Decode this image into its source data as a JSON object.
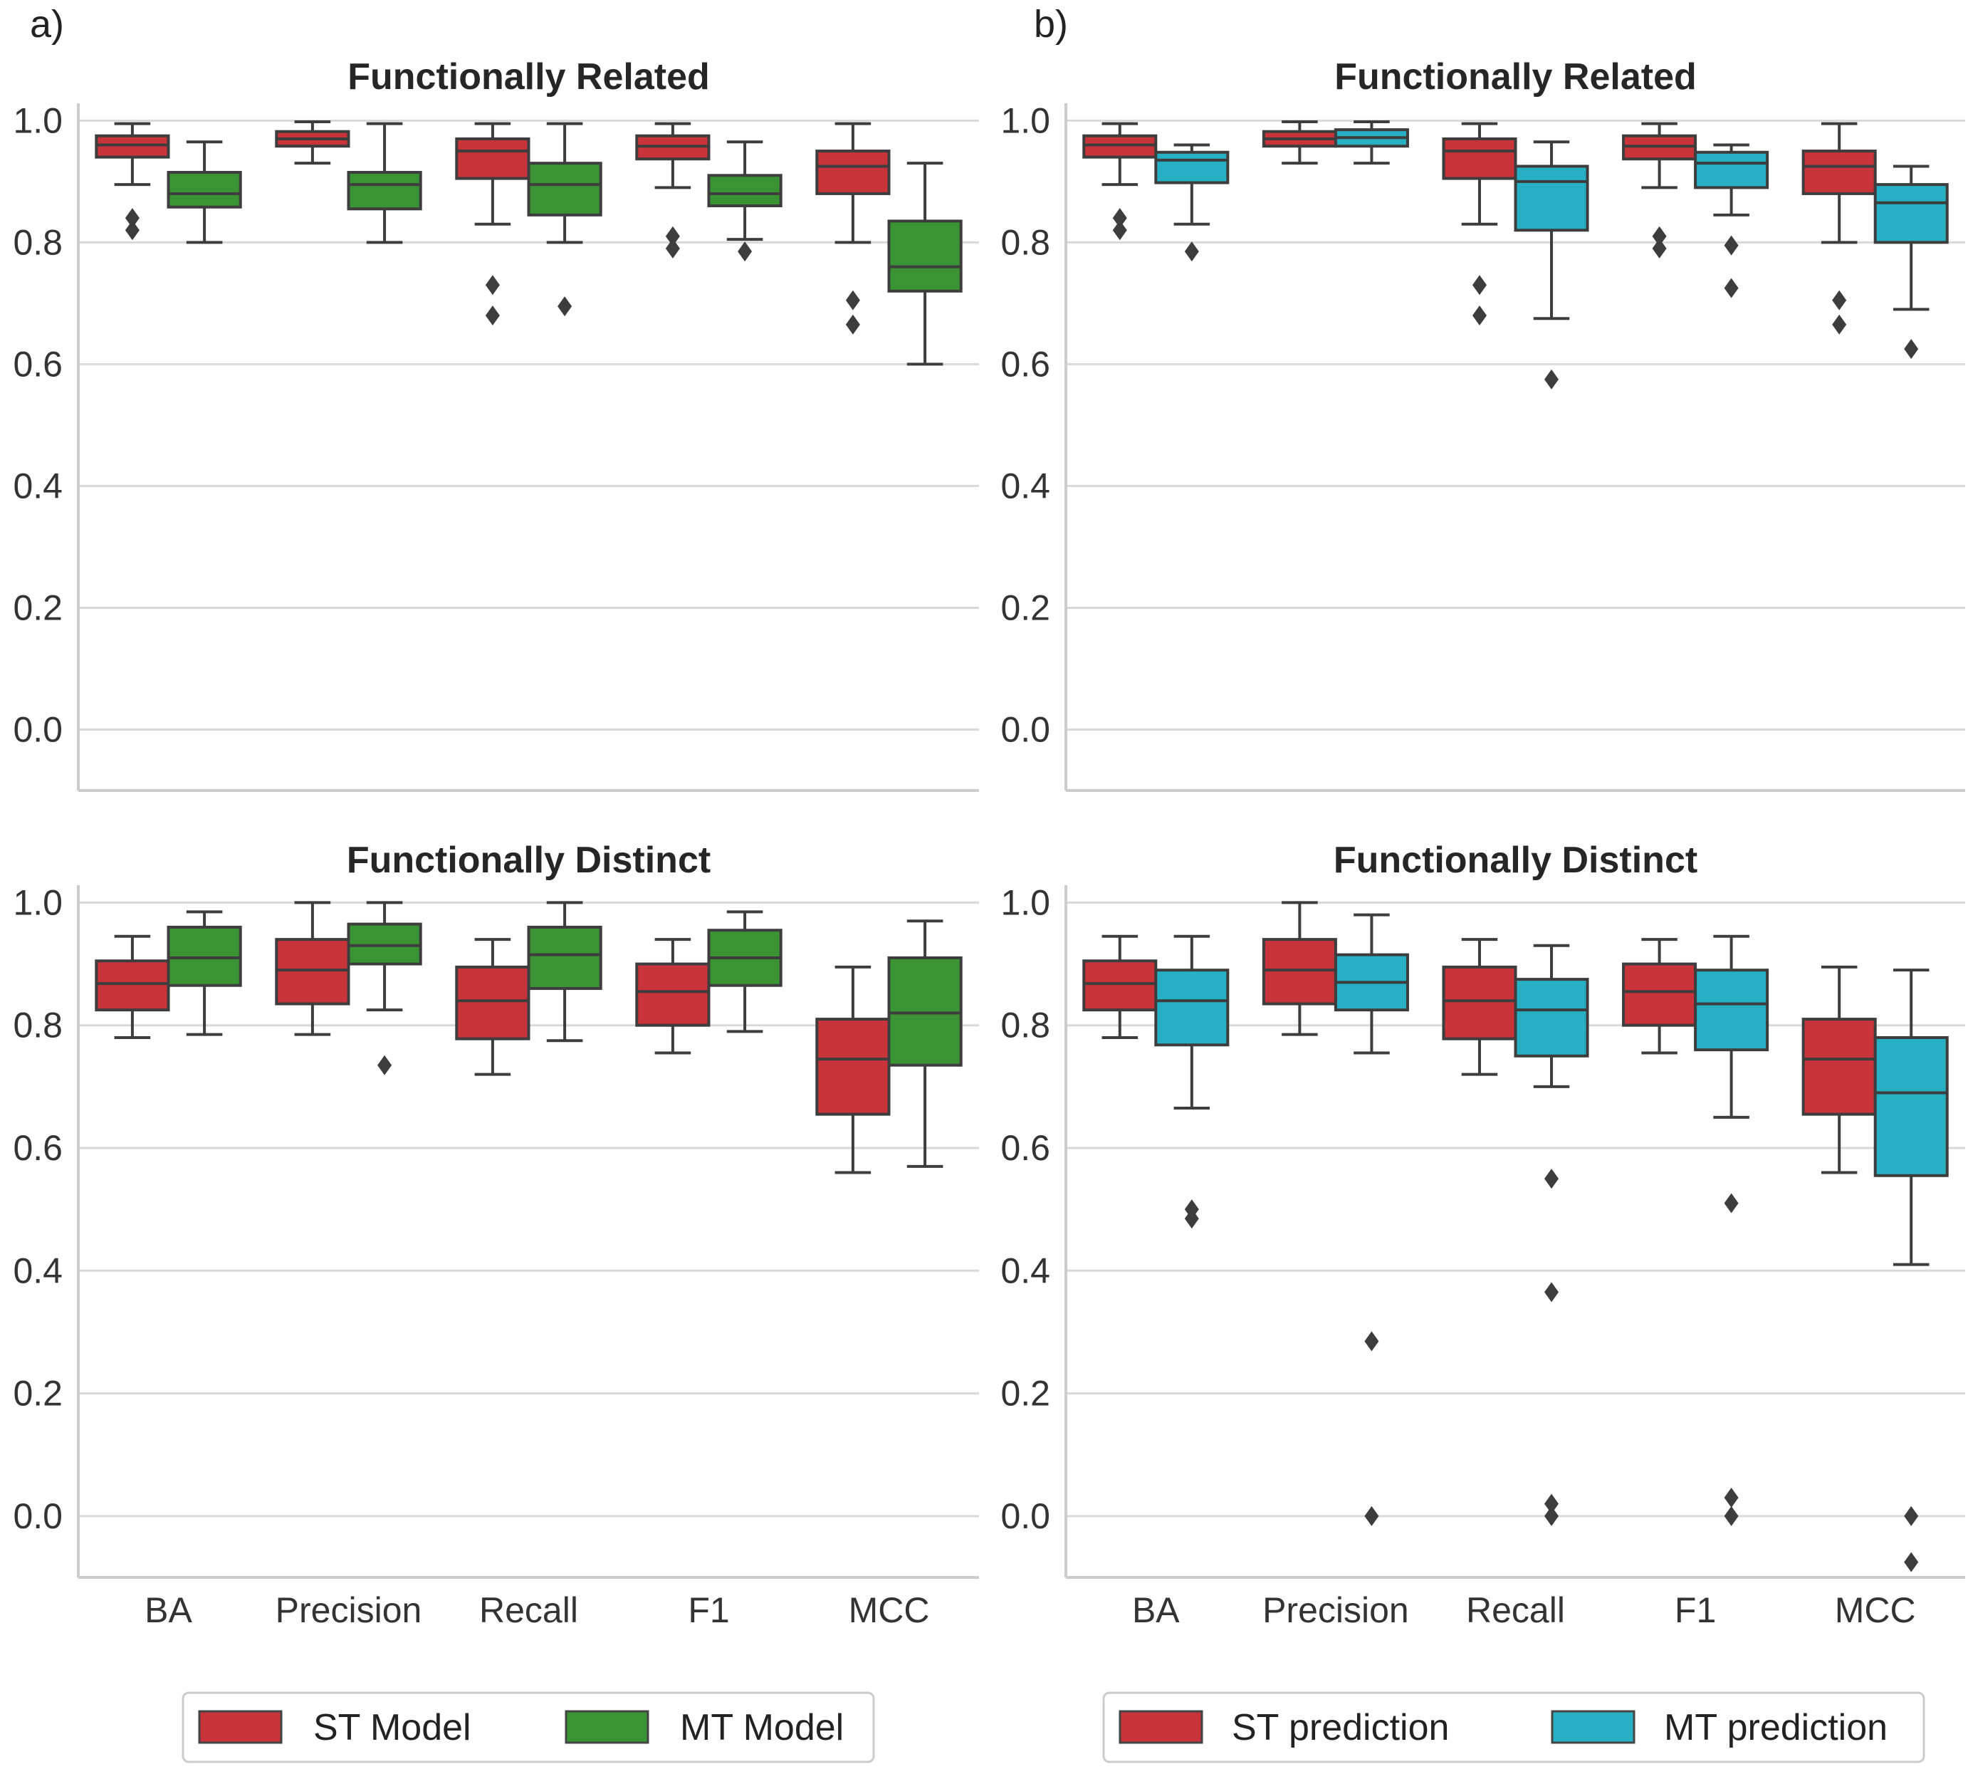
{
  "panels": [
    {
      "label": "a)",
      "legend": [
        {
          "label": "ST Model",
          "color": "#C8343A"
        },
        {
          "label": "MT Model",
          "color": "#3A9434"
        }
      ]
    },
    {
      "label": "b)",
      "legend": [
        {
          "label": "ST prediction",
          "color": "#C8343A"
        },
        {
          "label": "MT prediction",
          "color": "#27B0C4"
        }
      ]
    }
  ],
  "chart_data": [
    {
      "type": "box",
      "panel": "a)",
      "title": "Functionally Related",
      "categories": [
        "BA",
        "Precision",
        "Recall",
        "F1",
        "MCC"
      ],
      "ylim": [
        -0.1,
        1.02
      ],
      "yticks": [
        "0.0",
        "0.2",
        "0.4",
        "0.6",
        "0.8",
        "1.0"
      ],
      "grid": true,
      "series": [
        {
          "name": "ST Model",
          "color": "#C8343A",
          "boxes": [
            {
              "min": 0.895,
              "q1": 0.94,
              "median": 0.96,
              "q3": 0.975,
              "max": 0.995,
              "outliers": [
                0.84,
                0.82
              ]
            },
            {
              "min": 0.93,
              "q1": 0.958,
              "median": 0.97,
              "q3": 0.982,
              "max": 0.998,
              "outliers": []
            },
            {
              "min": 0.83,
              "q1": 0.905,
              "median": 0.95,
              "q3": 0.97,
              "max": 0.995,
              "outliers": [
                0.73,
                0.68
              ]
            },
            {
              "min": 0.89,
              "q1": 0.937,
              "median": 0.958,
              "q3": 0.975,
              "max": 0.995,
              "outliers": [
                0.81,
                0.79
              ]
            },
            {
              "min": 0.8,
              "q1": 0.88,
              "median": 0.925,
              "q3": 0.95,
              "max": 0.995,
              "outliers": [
                0.705,
                0.665
              ]
            }
          ]
        },
        {
          "name": "MT Model",
          "color": "#3A9434",
          "boxes": [
            {
              "min": 0.8,
              "q1": 0.858,
              "median": 0.88,
              "q3": 0.915,
              "max": 0.965,
              "outliers": []
            },
            {
              "min": 0.8,
              "q1": 0.855,
              "median": 0.895,
              "q3": 0.915,
              "max": 0.995,
              "outliers": []
            },
            {
              "min": 0.8,
              "q1": 0.845,
              "median": 0.895,
              "q3": 0.93,
              "max": 0.995,
              "outliers": [
                0.695
              ]
            },
            {
              "min": 0.805,
              "q1": 0.86,
              "median": 0.88,
              "q3": 0.91,
              "max": 0.965,
              "outliers": [
                0.785
              ]
            },
            {
              "min": 0.6,
              "q1": 0.72,
              "median": 0.76,
              "q3": 0.835,
              "max": 0.93,
              "outliers": []
            }
          ]
        }
      ]
    },
    {
      "type": "box",
      "panel": "a)",
      "title": "Functionally Distinct",
      "categories": [
        "BA",
        "Precision",
        "Recall",
        "F1",
        "MCC"
      ],
      "xlabel": "",
      "ylabel": "",
      "ylim": [
        -0.1,
        1.02
      ],
      "yticks": [
        "0.0",
        "0.2",
        "0.4",
        "0.6",
        "0.8",
        "1.0"
      ],
      "grid": true,
      "series": [
        {
          "name": "ST Model",
          "color": "#C8343A",
          "boxes": [
            {
              "min": 0.78,
              "q1": 0.825,
              "median": 0.868,
              "q3": 0.905,
              "max": 0.945,
              "outliers": []
            },
            {
              "min": 0.785,
              "q1": 0.835,
              "median": 0.89,
              "q3": 0.94,
              "max": 1.0,
              "outliers": []
            },
            {
              "min": 0.72,
              "q1": 0.778,
              "median": 0.84,
              "q3": 0.895,
              "max": 0.94,
              "outliers": []
            },
            {
              "min": 0.755,
              "q1": 0.8,
              "median": 0.855,
              "q3": 0.9,
              "max": 0.94,
              "outliers": []
            },
            {
              "min": 0.56,
              "q1": 0.655,
              "median": 0.745,
              "q3": 0.81,
              "max": 0.895,
              "outliers": []
            }
          ]
        },
        {
          "name": "MT Model",
          "color": "#3A9434",
          "boxes": [
            {
              "min": 0.785,
              "q1": 0.865,
              "median": 0.91,
              "q3": 0.96,
              "max": 0.985,
              "outliers": []
            },
            {
              "min": 0.825,
              "q1": 0.9,
              "median": 0.93,
              "q3": 0.965,
              "max": 1.0,
              "outliers": [
                0.735
              ]
            },
            {
              "min": 0.775,
              "q1": 0.86,
              "median": 0.915,
              "q3": 0.96,
              "max": 1.0,
              "outliers": []
            },
            {
              "min": 0.79,
              "q1": 0.865,
              "median": 0.91,
              "q3": 0.955,
              "max": 0.985,
              "outliers": []
            },
            {
              "min": 0.57,
              "q1": 0.735,
              "median": 0.82,
              "q3": 0.91,
              "max": 0.97,
              "outliers": []
            }
          ]
        }
      ]
    },
    {
      "type": "box",
      "panel": "b)",
      "title": "Functionally Related",
      "categories": [
        "BA",
        "Precision",
        "Recall",
        "F1",
        "MCC"
      ],
      "ylim": [
        -0.1,
        1.02
      ],
      "yticks": [
        "0.0",
        "0.2",
        "0.4",
        "0.6",
        "0.8",
        "1.0"
      ],
      "grid": true,
      "series": [
        {
          "name": "ST prediction",
          "color": "#C8343A",
          "boxes": [
            {
              "min": 0.895,
              "q1": 0.94,
              "median": 0.96,
              "q3": 0.975,
              "max": 0.995,
              "outliers": [
                0.84,
                0.82
              ]
            },
            {
              "min": 0.93,
              "q1": 0.958,
              "median": 0.97,
              "q3": 0.982,
              "max": 0.998,
              "outliers": []
            },
            {
              "min": 0.83,
              "q1": 0.905,
              "median": 0.95,
              "q3": 0.97,
              "max": 0.995,
              "outliers": [
                0.73,
                0.68
              ]
            },
            {
              "min": 0.89,
              "q1": 0.937,
              "median": 0.958,
              "q3": 0.975,
              "max": 0.995,
              "outliers": [
                0.81,
                0.79
              ]
            },
            {
              "min": 0.8,
              "q1": 0.88,
              "median": 0.925,
              "q3": 0.95,
              "max": 0.995,
              "outliers": [
                0.705,
                0.665
              ]
            }
          ]
        },
        {
          "name": "MT prediction",
          "color": "#27B0C4",
          "boxes": [
            {
              "min": 0.83,
              "q1": 0.898,
              "median": 0.935,
              "q3": 0.948,
              "max": 0.96,
              "outliers": [
                0.785
              ]
            },
            {
              "min": 0.93,
              "q1": 0.958,
              "median": 0.972,
              "q3": 0.985,
              "max": 0.998,
              "outliers": []
            },
            {
              "min": 0.675,
              "q1": 0.82,
              "median": 0.9,
              "q3": 0.925,
              "max": 0.965,
              "outliers": [
                0.575
              ]
            },
            {
              "min": 0.845,
              "q1": 0.89,
              "median": 0.93,
              "q3": 0.948,
              "max": 0.96,
              "outliers": [
                0.795,
                0.725
              ]
            },
            {
              "min": 0.69,
              "q1": 0.8,
              "median": 0.865,
              "q3": 0.895,
              "max": 0.925,
              "outliers": [
                0.625
              ]
            }
          ]
        }
      ]
    },
    {
      "type": "box",
      "panel": "b)",
      "title": "Functionally Distinct",
      "categories": [
        "BA",
        "Precision",
        "Recall",
        "F1",
        "MCC"
      ],
      "ylim": [
        -0.1,
        1.02
      ],
      "yticks": [
        "0.0",
        "0.2",
        "0.4",
        "0.6",
        "0.8",
        "1.0"
      ],
      "grid": true,
      "series": [
        {
          "name": "ST prediction",
          "color": "#C8343A",
          "boxes": [
            {
              "min": 0.78,
              "q1": 0.825,
              "median": 0.868,
              "q3": 0.905,
              "max": 0.945,
              "outliers": []
            },
            {
              "min": 0.785,
              "q1": 0.835,
              "median": 0.89,
              "q3": 0.94,
              "max": 1.0,
              "outliers": []
            },
            {
              "min": 0.72,
              "q1": 0.778,
              "median": 0.84,
              "q3": 0.895,
              "max": 0.94,
              "outliers": []
            },
            {
              "min": 0.755,
              "q1": 0.8,
              "median": 0.855,
              "q3": 0.9,
              "max": 0.94,
              "outliers": []
            },
            {
              "min": 0.56,
              "q1": 0.655,
              "median": 0.745,
              "q3": 0.81,
              "max": 0.895,
              "outliers": []
            }
          ]
        },
        {
          "name": "MT prediction",
          "color": "#27B0C4",
          "boxes": [
            {
              "min": 0.665,
              "q1": 0.768,
              "median": 0.84,
              "q3": 0.89,
              "max": 0.945,
              "outliers": [
                0.5,
                0.485
              ]
            },
            {
              "min": 0.755,
              "q1": 0.825,
              "median": 0.87,
              "q3": 0.915,
              "max": 0.98,
              "outliers": [
                0.285,
                0.0
              ]
            },
            {
              "min": 0.7,
              "q1": 0.75,
              "median": 0.825,
              "q3": 0.875,
              "max": 0.93,
              "outliers": [
                0.55,
                0.365,
                0.02,
                0.0
              ]
            },
            {
              "min": 0.65,
              "q1": 0.76,
              "median": 0.835,
              "q3": 0.89,
              "max": 0.945,
              "outliers": [
                0.51,
                0.03,
                0.0
              ]
            },
            {
              "min": 0.41,
              "q1": 0.555,
              "median": 0.69,
              "q3": 0.78,
              "max": 0.89,
              "outliers": [
                0.0,
                -0.075
              ]
            }
          ]
        }
      ]
    }
  ]
}
